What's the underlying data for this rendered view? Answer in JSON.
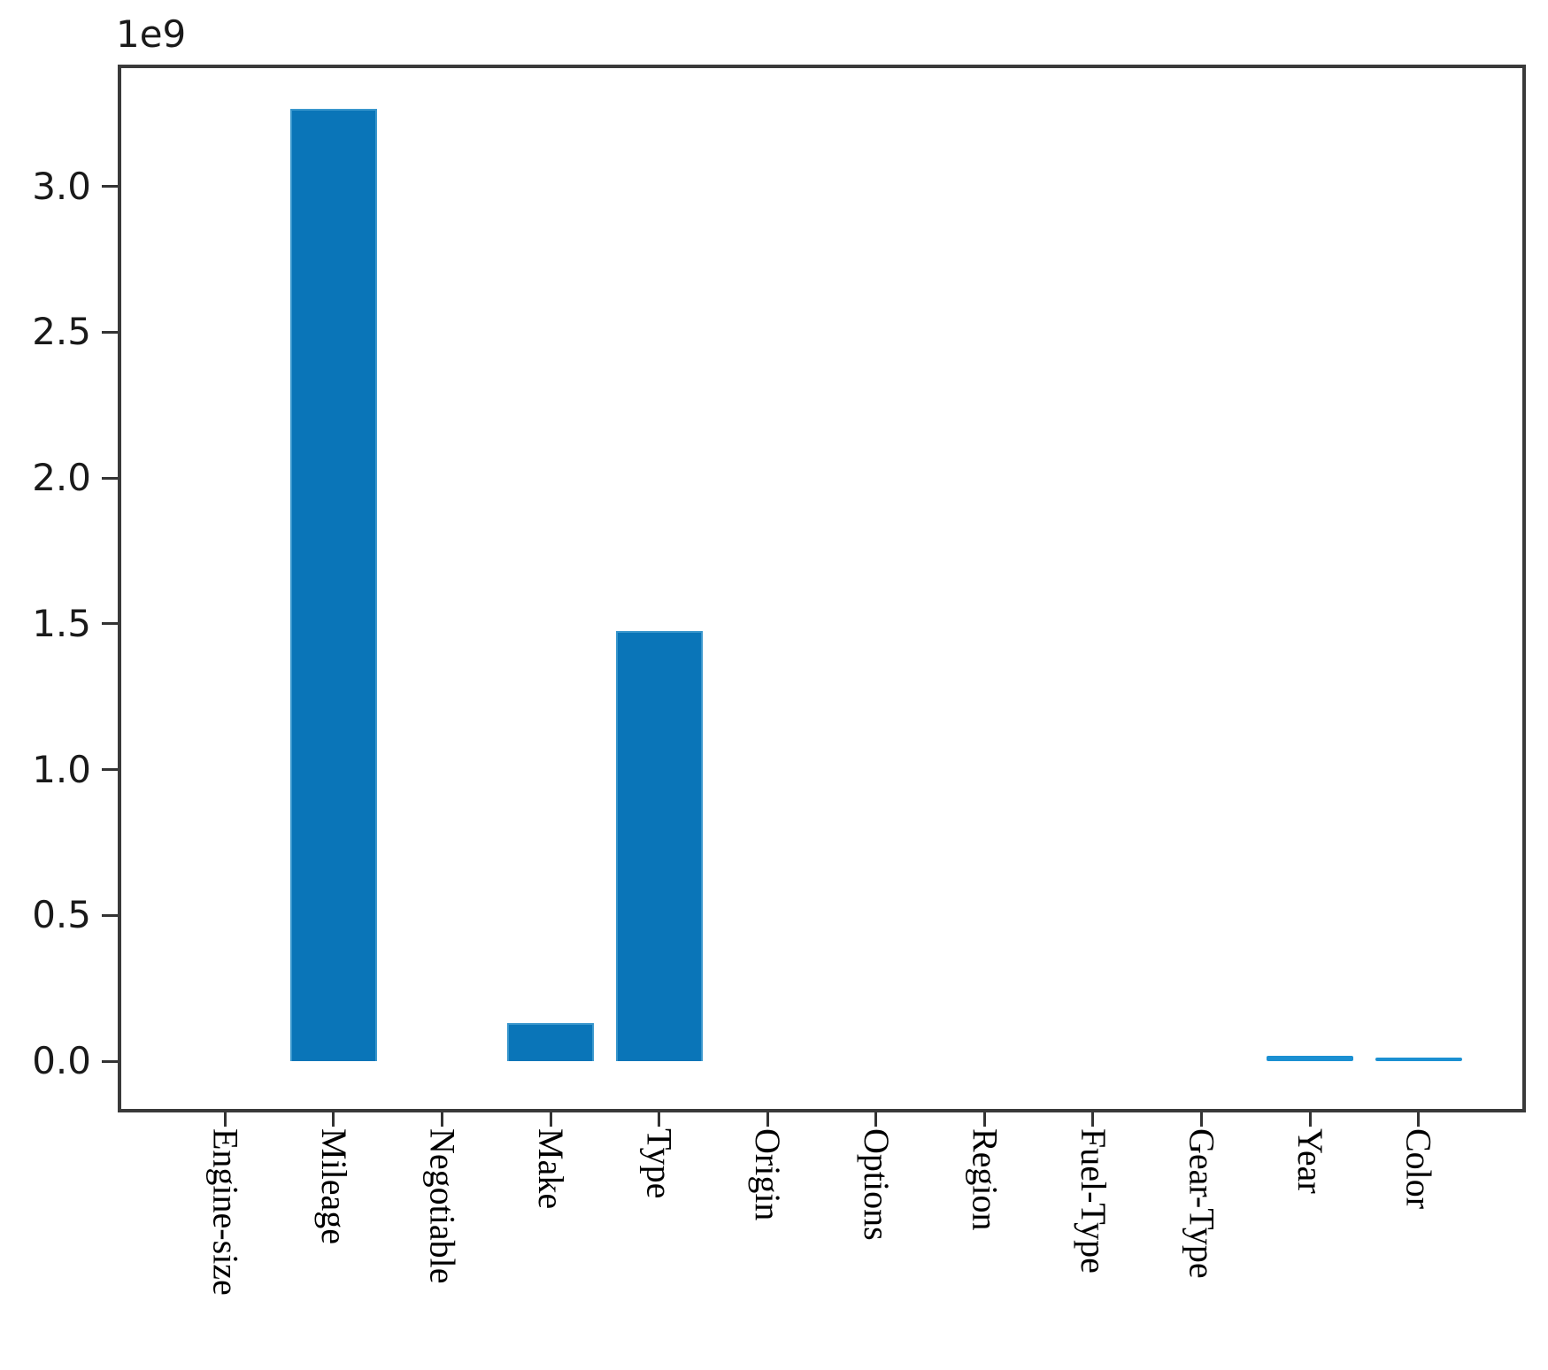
{
  "chart_data": {
    "type": "bar",
    "title": "",
    "xlabel": "",
    "ylabel": "",
    "offset_text": "1e9",
    "categories": [
      "Engine-size",
      "Mileage",
      "Negotiable",
      "Make",
      "Type",
      "Origin",
      "Options",
      "Region",
      "Fuel-Type",
      "Gear-Type",
      "Year",
      "Color"
    ],
    "values": [
      0,
      3266000000,
      0,
      130000000,
      1475000000,
      0,
      0,
      0,
      0,
      0,
      18000000,
      5000000
    ],
    "ytick_values": [
      0,
      500000000,
      1000000000,
      1500000000,
      2000000000,
      2500000000,
      3000000000
    ],
    "ytick_labels": [
      "0.0",
      "0.5",
      "1.0",
      "1.5",
      "2.0",
      "2.5",
      "3.0"
    ],
    "ylim": [
      -176000000,
      3418000000
    ],
    "xlim": [
      -0.99,
      11.99
    ],
    "bar_width_fraction": 0.8,
    "x_tick_label_rotation_deg": 90,
    "grid": false,
    "legend": null,
    "colors": {
      "bar": "#0a75b8",
      "bar_edge": "#3a97cd",
      "small_bar": "#1b90d2",
      "spine": "#3a3a3a",
      "tick": "#333333",
      "text": "#1a1a1a"
    }
  }
}
